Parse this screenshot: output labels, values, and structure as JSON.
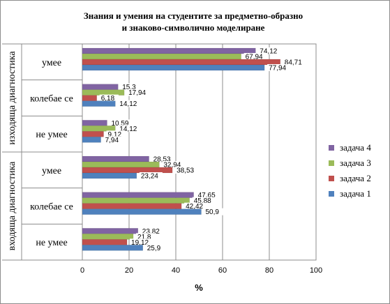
{
  "chart_data": {
    "type": "bar",
    "orientation": "horizontal",
    "title_lines": [
      "Знания и умения на студентите за предметно-образно",
      "и знаково-символично моделиране"
    ],
    "xlabel": "%",
    "xlim": [
      0,
      100
    ],
    "xticks": [
      0,
      20,
      40,
      60,
      80,
      100
    ],
    "grid": true,
    "legend_position": "right",
    "categories": [
      {
        "diagnostic": "изходяща диагностика",
        "label": "умее"
      },
      {
        "diagnostic": "изходяща диагностика",
        "label": "колебае се"
      },
      {
        "diagnostic": "изходяща диагностика",
        "label": "не умее"
      },
      {
        "diagnostic": "входяща диагностика",
        "label": "умее"
      },
      {
        "diagnostic": "входяща диагностика",
        "label": "колебае се"
      },
      {
        "diagnostic": "входяща диагностика",
        "label": "не умее"
      }
    ],
    "diagnostic_groups": [
      "изходяща диагностика",
      "входяща диагностика"
    ],
    "series": [
      {
        "name": "задача 4",
        "color": "#8064a2",
        "values": [
          74.12,
          15.3,
          10.59,
          28.53,
          47.65,
          23.82
        ],
        "labels": [
          "74,12",
          "15,3",
          "10,59",
          "28,53",
          "47,65",
          "23,82"
        ]
      },
      {
        "name": "задача 3",
        "color": "#9bbb59",
        "values": [
          67.94,
          17.94,
          14.12,
          32.94,
          45.88,
          21.8
        ],
        "labels": [
          "67,94",
          "17,94",
          "14,12",
          "32,94",
          "45,88",
          "21,8"
        ]
      },
      {
        "name": "задача 2",
        "color": "#c0504d",
        "values": [
          84.71,
          6.18,
          9.12,
          38.53,
          42.42,
          19.12
        ],
        "labels": [
          "84,71",
          "6,18",
          "9,12",
          "38,53",
          "42,42",
          "19,12"
        ]
      },
      {
        "name": "задача 1",
        "color": "#4f81bd",
        "values": [
          77.94,
          14.12,
          7.94,
          23.24,
          50.9,
          25.9
        ],
        "labels": [
          "77,94",
          "14,12",
          "7,94",
          "23,24",
          "50,9",
          "25,9"
        ]
      }
    ]
  }
}
